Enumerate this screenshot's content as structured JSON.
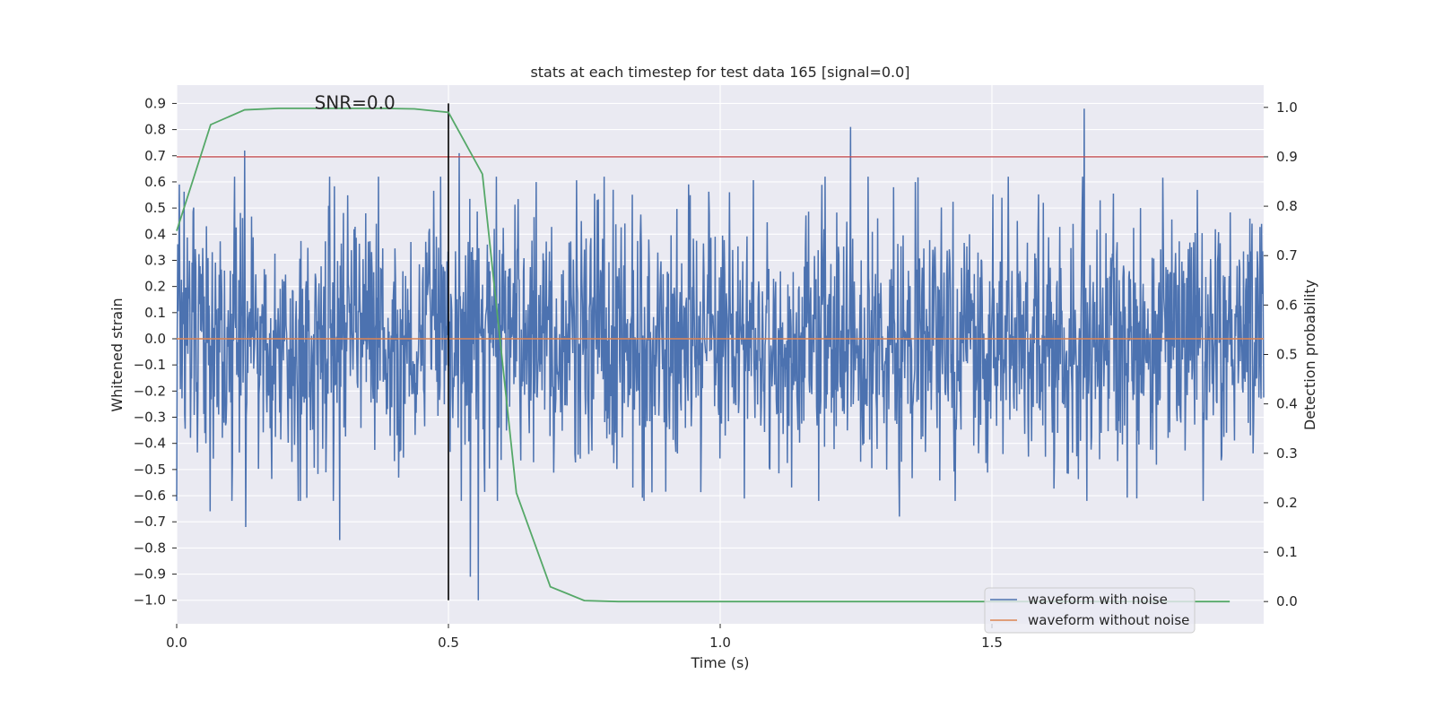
{
  "chart_data": {
    "type": "line",
    "title": "stats at each timestep for test data 165 [signal=0.0]",
    "xlabel": "Time (s)",
    "ylabel_left": "Whitened strain",
    "ylabel_right": "Detection probability",
    "xlim": [
      0.0,
      2.0
    ],
    "ylim_left": [
      -1.09,
      0.97
    ],
    "ylim_right": [
      -0.045,
      1.045
    ],
    "x_ticks": [
      0.0,
      0.5,
      1.0,
      1.5
    ],
    "x_tick_labels": [
      "0.0",
      "0.5",
      "1.0",
      "1.5"
    ],
    "y_left_ticks": [
      0.9,
      0.8,
      0.7,
      0.6,
      0.5,
      0.4,
      0.3,
      0.2,
      0.1,
      0.0,
      -0.1,
      -0.2,
      -0.3,
      -0.4,
      -0.5,
      -0.6,
      -0.7,
      -0.8,
      -0.9,
      -1.0
    ],
    "y_left_tick_labels": [
      "0.9",
      "0.8",
      "0.7",
      "0.6",
      "0.5",
      "0.4",
      "0.3",
      "0.2",
      "0.1",
      "0.0",
      "−0.1",
      "−0.2",
      "−0.3",
      "−0.4",
      "−0.5",
      "−0.6",
      "−0.7",
      "−0.8",
      "−0.9",
      "−1.0"
    ],
    "y_right_ticks": [
      1.0,
      0.9,
      0.8,
      0.7,
      0.6,
      0.5,
      0.4,
      0.3,
      0.2,
      0.1,
      0.0
    ],
    "y_right_tick_labels": [
      "1.0",
      "0.9",
      "0.8",
      "0.7",
      "0.6",
      "0.5",
      "0.4",
      "0.3",
      "0.2",
      "0.1",
      "0.0"
    ],
    "annotation": "SNR=0.0",
    "annotation_at": {
      "x": 0.27,
      "y": 0.9
    },
    "grid": true,
    "legend_position": "lower-right",
    "noisy_waveform": {
      "name": "waveform with noise",
      "color": "#4c72b0",
      "t_range": [
        0.0,
        2.0
      ],
      "n_samples": 2048,
      "std": 0.25,
      "peaks": [
        {
          "t": 0.0,
          "v": -0.62
        },
        {
          "t": 0.005,
          "v": 0.59
        },
        {
          "t": 0.062,
          "v": -0.66
        },
        {
          "t": 0.125,
          "v": 0.72
        },
        {
          "t": 0.127,
          "v": -0.72
        },
        {
          "t": 0.3,
          "v": -0.77
        },
        {
          "t": 0.52,
          "v": 0.71
        },
        {
          "t": 0.54,
          "v": -0.91
        },
        {
          "t": 0.555,
          "v": -1.0
        },
        {
          "t": 1.24,
          "v": 0.81
        },
        {
          "t": 1.67,
          "v": 0.88
        },
        {
          "t": 1.33,
          "v": -0.68
        }
      ]
    },
    "clean_waveform": {
      "name": "waveform without noise",
      "color": "#dd8452",
      "t": [
        0.0,
        2.0
      ],
      "values": [
        0.0,
        0.0
      ]
    },
    "detection_probability": {
      "color": "#55a868",
      "t": [
        0.0,
        0.0625,
        0.125,
        0.1875,
        0.25,
        0.3125,
        0.375,
        0.4375,
        0.5,
        0.5625,
        0.625,
        0.6875,
        0.75,
        0.8125,
        0.875,
        1.0,
        1.25,
        1.5,
        1.75,
        1.9375
      ],
      "values": [
        0.75,
        0.965,
        0.995,
        0.998,
        0.998,
        0.998,
        0.998,
        0.997,
        0.99,
        0.865,
        0.22,
        0.03,
        0.002,
        0.0,
        0.0,
        0.0,
        0.0,
        0.0,
        0.0,
        0.0
      ]
    },
    "threshold_line": {
      "color": "#c44e52",
      "value": 0.9,
      "axis": "right"
    },
    "marker_line": {
      "color": "#000000",
      "x": 0.5,
      "y_range": [
        -1.0,
        0.9
      ]
    }
  }
}
